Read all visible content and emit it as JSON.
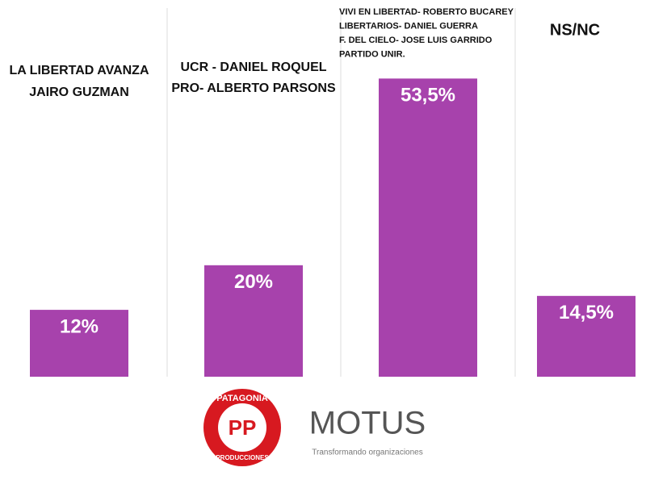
{
  "chart_data": {
    "type": "bar",
    "categories": [
      [
        "LA LIBERTAD AVANZA",
        "JAIRO GUZMAN"
      ],
      [
        "UCR - DANIEL ROQUEL",
        "PRO- ALBERTO PARSONS"
      ],
      [
        "VIVI EN LIBERTAD- ROBERTO BUCAREY",
        "LIBERTARIOS- DANIEL GUERRA",
        "F. DEL CIELO- JOSE LUIS GARRIDO",
        "PARTIDO UNIR."
      ],
      [
        "NS/NC"
      ]
    ],
    "values": [
      12,
      20,
      53.5,
      14.5
    ],
    "value_labels": [
      "12%",
      "20%",
      "53,5%",
      "14,5%"
    ],
    "color": "#a742ac",
    "ylim": [
      0,
      55
    ]
  },
  "logos": {
    "left": {
      "ring_top": "PATAGONIA",
      "ring_bottom": "PRODUCCIONES",
      "center": "PP"
    },
    "right": {
      "name": "MOTUS",
      "tagline": "Transformando organizaciones"
    }
  }
}
